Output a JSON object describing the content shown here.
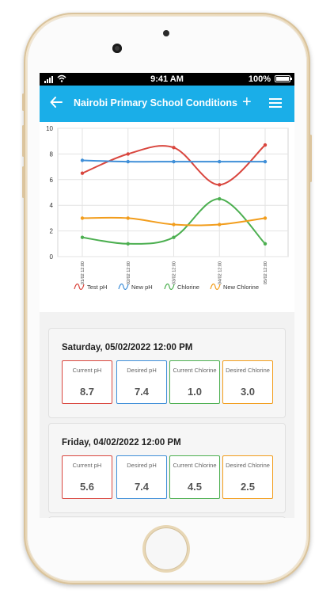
{
  "status_bar": {
    "time": "9:41 AM",
    "battery": "100%"
  },
  "header": {
    "title": "Nairobi Primary School Conditions",
    "add_label": "+"
  },
  "chart_data": {
    "type": "line",
    "x": [
      "01/02 12:00",
      "02/02 12:00",
      "03/02 12:00",
      "04/02 12:00",
      "05/02 12:00"
    ],
    "ylim": [
      0,
      10
    ],
    "yticks": [
      "0",
      "2",
      "4",
      "6",
      "8",
      "10"
    ],
    "grid": true,
    "legend": "bottom",
    "series": [
      {
        "name": "Test pH",
        "color": "#d9463e",
        "values": [
          6.5,
          8.0,
          8.5,
          5.6,
          8.7
        ]
      },
      {
        "name": "New pH",
        "color": "#3f8fd8",
        "values": [
          7.5,
          7.4,
          7.4,
          7.4,
          7.4
        ]
      },
      {
        "name": "Chlorine",
        "color": "#4caf50",
        "values": [
          1.5,
          1.0,
          1.5,
          4.5,
          1.0
        ]
      },
      {
        "name": "New Chlorine",
        "color": "#f29d1c",
        "values": [
          3.0,
          3.0,
          2.5,
          2.5,
          3.0
        ]
      }
    ]
  },
  "readings": [
    {
      "date": "Saturday, 05/02/2022 12:00 PM",
      "metrics": [
        {
          "label": "Current pH",
          "value": "8.7",
          "color": "#d9463e"
        },
        {
          "label": "Desired pH",
          "value": "7.4",
          "color": "#3f8fd8"
        },
        {
          "label": "Current Chlorine",
          "value": "1.0",
          "color": "#4caf50"
        },
        {
          "label": "Desired Chlorine",
          "value": "3.0",
          "color": "#f29d1c"
        }
      ]
    },
    {
      "date": "Friday, 04/02/2022 12:00 PM",
      "metrics": [
        {
          "label": "Current pH",
          "value": "5.6",
          "color": "#d9463e"
        },
        {
          "label": "Desired pH",
          "value": "7.4",
          "color": "#3f8fd8"
        },
        {
          "label": "Current Chlorine",
          "value": "4.5",
          "color": "#4caf50"
        },
        {
          "label": "Desired Chlorine",
          "value": "2.5",
          "color": "#f29d1c"
        }
      ]
    }
  ]
}
